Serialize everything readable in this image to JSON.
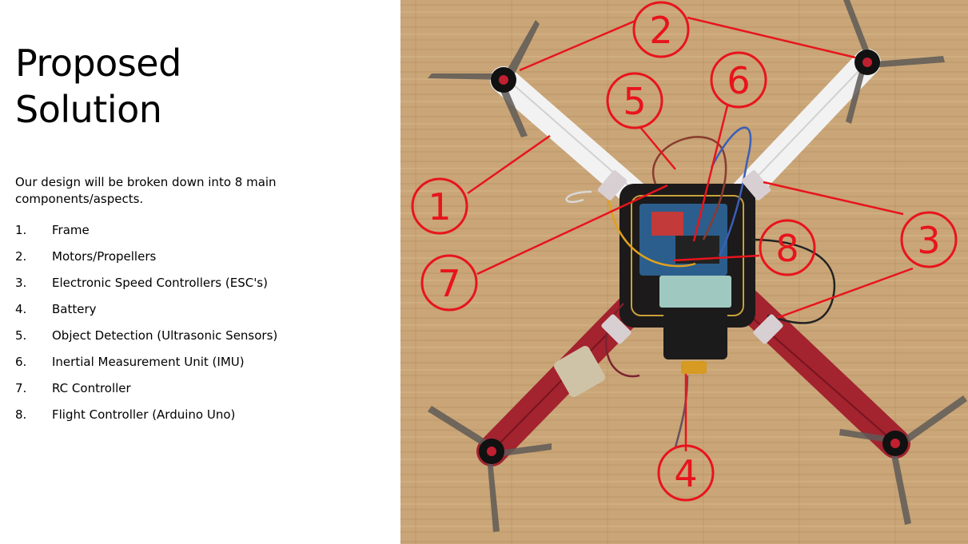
{
  "slide": {
    "title_line1": "Proposed",
    "title_line2": "Solution",
    "intro": "Our design will be broken down into 8 main components/aspects.",
    "items": [
      {
        "num": "1.",
        "label": "Frame"
      },
      {
        "num": "2.",
        "label": "Motors/Propellers"
      },
      {
        "num": "3.",
        "label": "Electronic Speed Controllers (ESC's)"
      },
      {
        "num": "4.",
        "label": "Battery"
      },
      {
        "num": "5.",
        "label": "Object Detection (Ultrasonic Sensors)"
      },
      {
        "num": "6.",
        "label": "Inertial Measurement Unit (IMU)"
      },
      {
        "num": "7.",
        "label": "RC Controller"
      },
      {
        "num": "8.",
        "label": "Flight Controller (Arduino Uno)"
      }
    ]
  },
  "callouts": [
    "1",
    "2",
    "3",
    "4",
    "5",
    "6",
    "7",
    "8"
  ],
  "colors": {
    "callout": "#e8141c",
    "table_wood": "#c9a577",
    "frame_white": "#f2f2f2",
    "frame_red": "#a3232f"
  }
}
